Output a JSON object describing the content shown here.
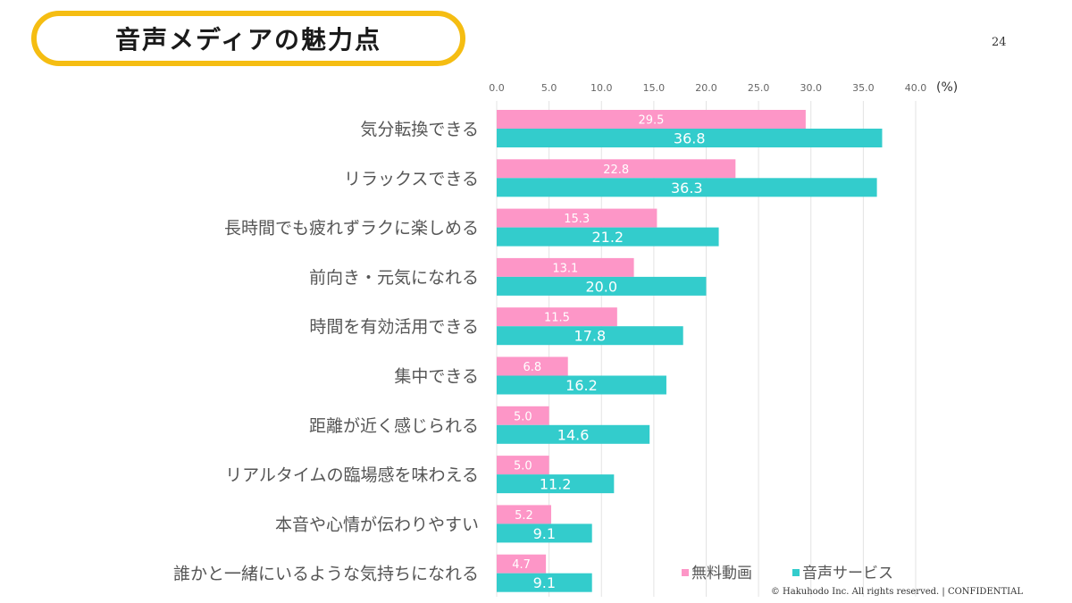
{
  "slide": {
    "title": "音声メディアの魅力点",
    "page_number": "24",
    "footer": "© Hakuhodo Inc. All rights reserved. | CONFIDENTIAL"
  },
  "colors": {
    "title_border": "#f5bd12",
    "series_free_video": "#fd96c7",
    "series_audio_service": "#33cccc",
    "grid": "#e3e3e3"
  },
  "chart_data": {
    "type": "bar",
    "orientation": "horizontal",
    "title": "音声メディアの魅力点",
    "xlabel": "",
    "unit_label": "(%)",
    "xlim": [
      0,
      40
    ],
    "ticks": [
      "0.0",
      "5.0",
      "10.0",
      "15.0",
      "20.0",
      "25.0",
      "30.0",
      "35.0",
      "40.0"
    ],
    "tick_values": [
      0,
      5,
      10,
      15,
      20,
      25,
      30,
      35,
      40
    ],
    "grid": true,
    "legend_position": "bottom-right",
    "categories": [
      "気分転換できる",
      "リラックスできる",
      "長時間でも疲れずラクに楽しめる",
      "前向き・元気になれる",
      "時間を有効活用できる",
      "集中できる",
      "距離が近く感じられる",
      "リアルタイムの臨場感を味わえる",
      "本音や心情が伝わりやすい",
      "誰かと一緒にいるような気持ちになれる"
    ],
    "series": [
      {
        "name": "無料動画",
        "color": "#fd96c7",
        "values": [
          29.5,
          22.8,
          15.3,
          13.1,
          11.5,
          6.8,
          5.0,
          5.0,
          5.2,
          4.7
        ]
      },
      {
        "name": "音声サービス",
        "color": "#33cccc",
        "values": [
          36.8,
          36.3,
          21.2,
          20.0,
          17.8,
          16.2,
          14.6,
          11.2,
          9.1,
          9.1
        ]
      }
    ]
  }
}
